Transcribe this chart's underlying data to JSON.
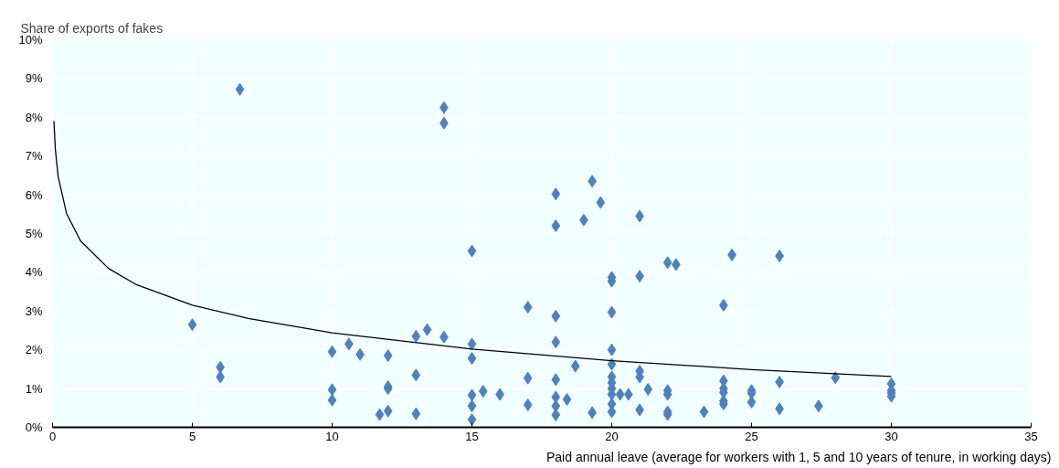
{
  "chart_data": {
    "type": "scatter",
    "xlabel": "Paid annual leave (average for workers with 1, 5 and 10 years of tenure, in working days)",
    "ylabel": "Share of exports of fakes",
    "xlim": [
      0,
      35
    ],
    "xticks": [
      0,
      5,
      10,
      15,
      20,
      25,
      30,
      35
    ],
    "ylim": [
      0,
      10
    ],
    "yticks": [
      {
        "value": 0,
        "label": "0%"
      },
      {
        "value": 1,
        "label": "1%"
      },
      {
        "value": 2,
        "label": "2%"
      },
      {
        "value": 3,
        "label": "3%"
      },
      {
        "value": 4,
        "label": "4%"
      },
      {
        "value": 5,
        "label": "5%"
      },
      {
        "value": 6,
        "label": "6%"
      },
      {
        "value": 7,
        "label": "7%"
      },
      {
        "value": 8,
        "label": "8%"
      },
      {
        "value": 9,
        "label": "9%"
      },
      {
        "value": 10,
        "label": "10%"
      }
    ],
    "grid": true,
    "marker": "diamond",
    "series": [
      {
        "color": "#4f81bd",
        "x": [
          5,
          6,
          6,
          6.7,
          10,
          10,
          10,
          10.6,
          11,
          11.7,
          12,
          12,
          12,
          12,
          13,
          13,
          13,
          13.4,
          14,
          14,
          14,
          15,
          15,
          15,
          15,
          15,
          15,
          15.4,
          16,
          17,
          17,
          17,
          18,
          18,
          18,
          18,
          18,
          18,
          18,
          18,
          18.4,
          18.7,
          19,
          19.3,
          19.3,
          19.6,
          20,
          20,
          20,
          20,
          20,
          20,
          20,
          20,
          20,
          20,
          20,
          20.3,
          20.6,
          21,
          21,
          21,
          21,
          21,
          21.3,
          22,
          22,
          22,
          22,
          22,
          22.3,
          23.3,
          24,
          24,
          24,
          24,
          24,
          24,
          24.3,
          25,
          25,
          25,
          26,
          26,
          26,
          27.4,
          28,
          30,
          30,
          30,
          30
        ],
        "values": [
          2.65,
          1.55,
          1.3,
          8.72,
          1.95,
          0.97,
          0.7,
          2.15,
          1.88,
          0.33,
          1.85,
          1.05,
          1.0,
          0.42,
          2.35,
          1.35,
          0.35,
          2.52,
          8.25,
          7.85,
          2.33,
          4.55,
          2.15,
          1.78,
          0.83,
          0.55,
          0.2,
          0.93,
          0.85,
          3.1,
          1.27,
          0.58,
          6.02,
          5.2,
          2.87,
          2.2,
          1.23,
          0.78,
          0.55,
          0.32,
          0.72,
          1.58,
          5.35,
          0.38,
          6.35,
          5.8,
          3.87,
          3.77,
          2.97,
          2.0,
          1.63,
          1.3,
          1.15,
          1.0,
          0.85,
          0.6,
          0.4,
          0.85,
          0.85,
          5.45,
          3.9,
          1.45,
          1.3,
          0.45,
          0.98,
          4.25,
          0.95,
          0.85,
          0.4,
          0.33,
          4.2,
          0.4,
          3.15,
          1.2,
          1.0,
          0.9,
          0.68,
          0.6,
          4.45,
          0.95,
          0.88,
          0.65,
          4.42,
          1.17,
          0.48,
          0.55,
          1.28,
          1.12,
          0.95,
          0.88,
          0.8
        ]
      },
      {
        "type": "line",
        "marker": "none",
        "color": "#000000",
        "x": [
          0.05,
          0.1,
          0.2,
          0.5,
          1,
          2,
          3,
          5,
          7,
          10,
          15,
          20,
          25,
          30
        ],
        "values": [
          7.9,
          7.18,
          6.47,
          5.52,
          4.81,
          4.1,
          3.68,
          3.15,
          2.81,
          2.44,
          2.02,
          1.72,
          1.49,
          1.31
        ]
      }
    ]
  }
}
